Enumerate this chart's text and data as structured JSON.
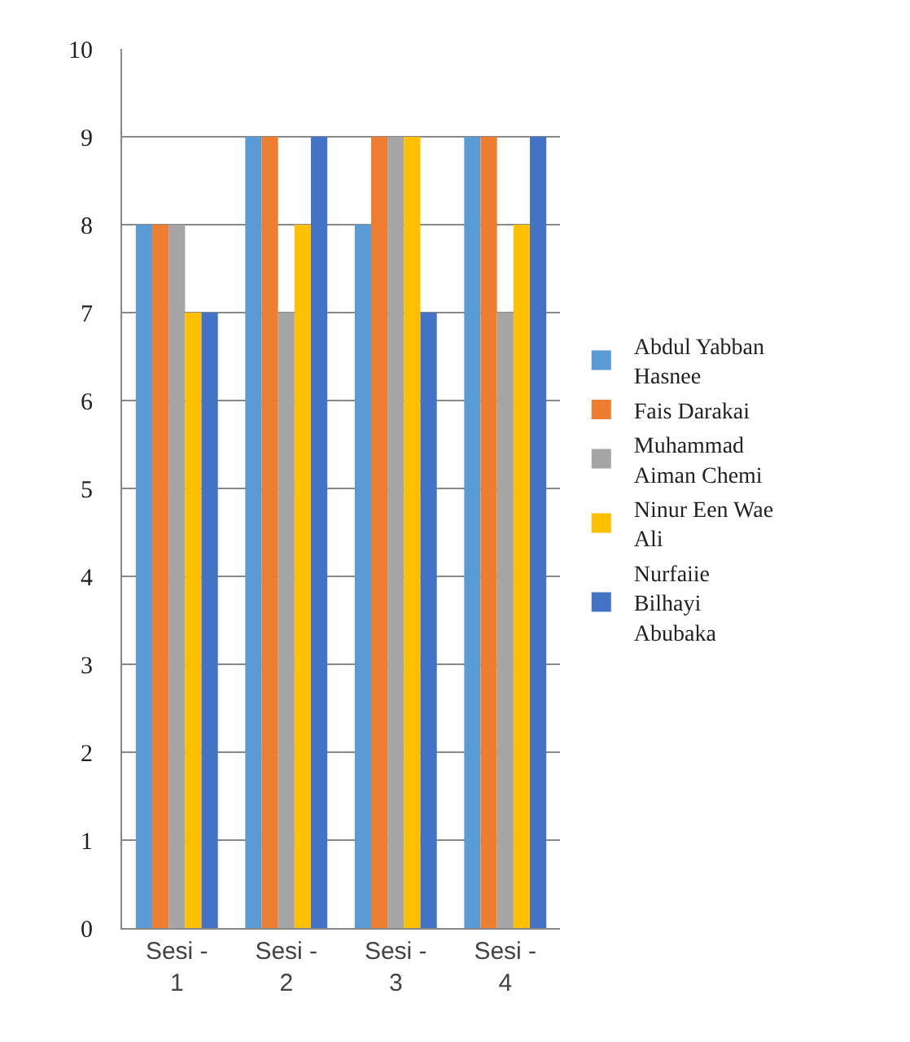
{
  "chart_data": {
    "type": "bar",
    "categories": [
      "Sesi - 1",
      "Sesi - 2",
      "Sesi - 3",
      "Sesi - 4"
    ],
    "series": [
      {
        "name": "Abdul Yabban Hasnee",
        "color": "#5b9bd5",
        "values": [
          8,
          9,
          8,
          9
        ]
      },
      {
        "name": "Fais Darakai",
        "color": "#ed7d31",
        "values": [
          8,
          9,
          9,
          9
        ]
      },
      {
        "name": "Muhammad Aiman Chemi",
        "color": "#a5a5a5",
        "values": [
          8,
          7,
          9,
          7
        ]
      },
      {
        "name": "Ninur Een Wae Ali",
        "color": "#ffc000",
        "values": [
          7,
          8,
          9,
          8
        ]
      },
      {
        "name": "Nurfaiie Bilhayi Abubaka",
        "color": "#4472c4",
        "values": [
          7,
          9,
          7,
          9
        ]
      }
    ],
    "ylim": [
      0,
      10
    ],
    "yticks": [
      0,
      1,
      2,
      3,
      4,
      5,
      6,
      7,
      8,
      9,
      10
    ],
    "grid": "y",
    "legend": "right"
  }
}
